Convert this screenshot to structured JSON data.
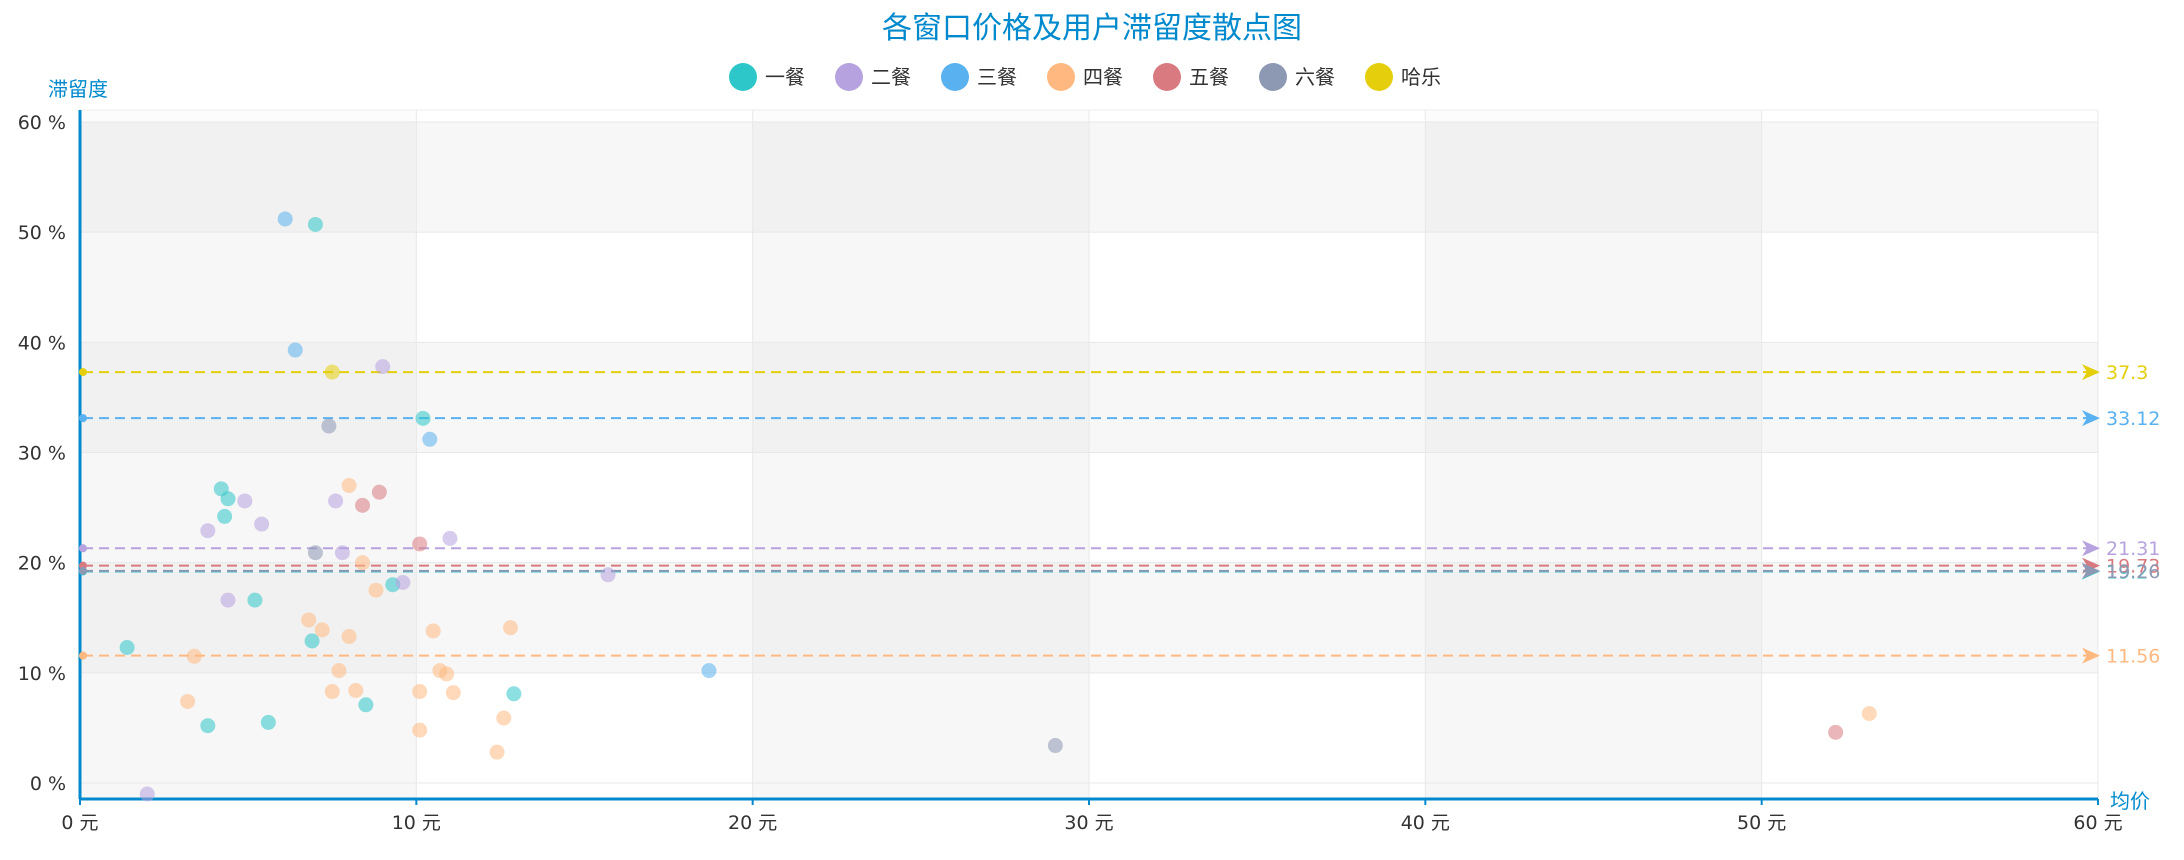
{
  "chart_data": {
    "type": "scatter",
    "title": "各窗口价格及用户滞留度散点图",
    "xlabel": "均价",
    "ylabel": "滞留度",
    "xlim": [
      0,
      60
    ],
    "ylim": [
      0,
      60
    ],
    "x_ticks": [
      0,
      10,
      20,
      30,
      40,
      50,
      60
    ],
    "y_ticks": [
      0,
      10,
      20,
      30,
      40,
      50,
      60
    ],
    "x_tick_labels": [
      "0 元",
      "10 元",
      "20 元",
      "30 元",
      "40 元",
      "50 元",
      "60 元"
    ],
    "y_tick_labels": [
      "0 %",
      "10 %",
      "20 %",
      "30 %",
      "40 %",
      "50 %",
      "60 %"
    ],
    "grid": true,
    "legend_position": "top",
    "series": [
      {
        "name": "一餐",
        "color": "#2ec7c9",
        "points": [
          [
            1.4,
            12.3
          ],
          [
            3.8,
            5.2
          ],
          [
            4.2,
            26.7
          ],
          [
            4.3,
            24.2
          ],
          [
            4.4,
            25.8
          ],
          [
            5.2,
            16.6
          ],
          [
            5.6,
            5.5
          ],
          [
            6.9,
            12.9
          ],
          [
            7.0,
            50.7
          ],
          [
            8.5,
            7.1
          ],
          [
            9.3,
            18.0
          ],
          [
            10.2,
            33.1
          ],
          [
            12.9,
            8.1
          ]
        ],
        "mean": 19.2,
        "mean_label": "19.2"
      },
      {
        "name": "二餐",
        "color": "#b6a2de",
        "points": [
          [
            2.0,
            -1.0
          ],
          [
            3.8,
            22.9
          ],
          [
            4.4,
            16.6
          ],
          [
            4.9,
            25.6
          ],
          [
            5.4,
            23.5
          ],
          [
            7.6,
            25.6
          ],
          [
            7.8,
            20.9
          ],
          [
            9.0,
            37.8
          ],
          [
            9.6,
            18.2
          ],
          [
            11.0,
            22.2
          ],
          [
            15.7,
            18.9
          ]
        ],
        "mean": 21.31,
        "mean_label": "21.31"
      },
      {
        "name": "三餐",
        "color": "#5ab1ef",
        "points": [
          [
            6.1,
            51.2
          ],
          [
            6.4,
            39.3
          ],
          [
            10.4,
            31.2
          ],
          [
            18.7,
            10.2
          ]
        ],
        "mean": 33.12,
        "mean_label": "33.12"
      },
      {
        "name": "四餐",
        "color": "#ffb980",
        "points": [
          [
            3.2,
            7.4
          ],
          [
            3.4,
            11.5
          ],
          [
            6.8,
            14.8
          ],
          [
            7.2,
            13.9
          ],
          [
            7.5,
            8.3
          ],
          [
            7.7,
            10.2
          ],
          [
            8.0,
            27.0
          ],
          [
            8.0,
            13.3
          ],
          [
            8.2,
            8.4
          ],
          [
            8.4,
            20.0
          ],
          [
            8.8,
            17.5
          ],
          [
            10.1,
            8.3
          ],
          [
            10.1,
            4.8
          ],
          [
            10.5,
            13.8
          ],
          [
            10.7,
            10.2
          ],
          [
            10.9,
            9.9
          ],
          [
            11.1,
            8.2
          ],
          [
            12.4,
            2.8
          ],
          [
            12.6,
            5.9
          ],
          [
            12.8,
            14.1
          ],
          [
            53.2,
            6.3
          ]
        ],
        "mean": 11.56,
        "mean_label": "11.56"
      },
      {
        "name": "五餐",
        "color": "#d87a80",
        "points": [
          [
            8.4,
            25.2
          ],
          [
            8.9,
            26.4
          ],
          [
            10.1,
            21.7
          ],
          [
            52.2,
            4.6
          ]
        ],
        "mean": 19.73,
        "mean_label": "19.73"
      },
      {
        "name": "六餐",
        "color": "#8d98b3",
        "points": [
          [
            7.0,
            20.9
          ],
          [
            7.4,
            32.4
          ],
          [
            29.0,
            3.4
          ]
        ],
        "mean": 19.26,
        "mean_label": "19.26"
      },
      {
        "name": "哈乐",
        "color": "#e5cf0d",
        "points": [
          [
            7.5,
            37.3
          ]
        ],
        "mean": 37.3,
        "mean_label": "37.3"
      }
    ]
  }
}
